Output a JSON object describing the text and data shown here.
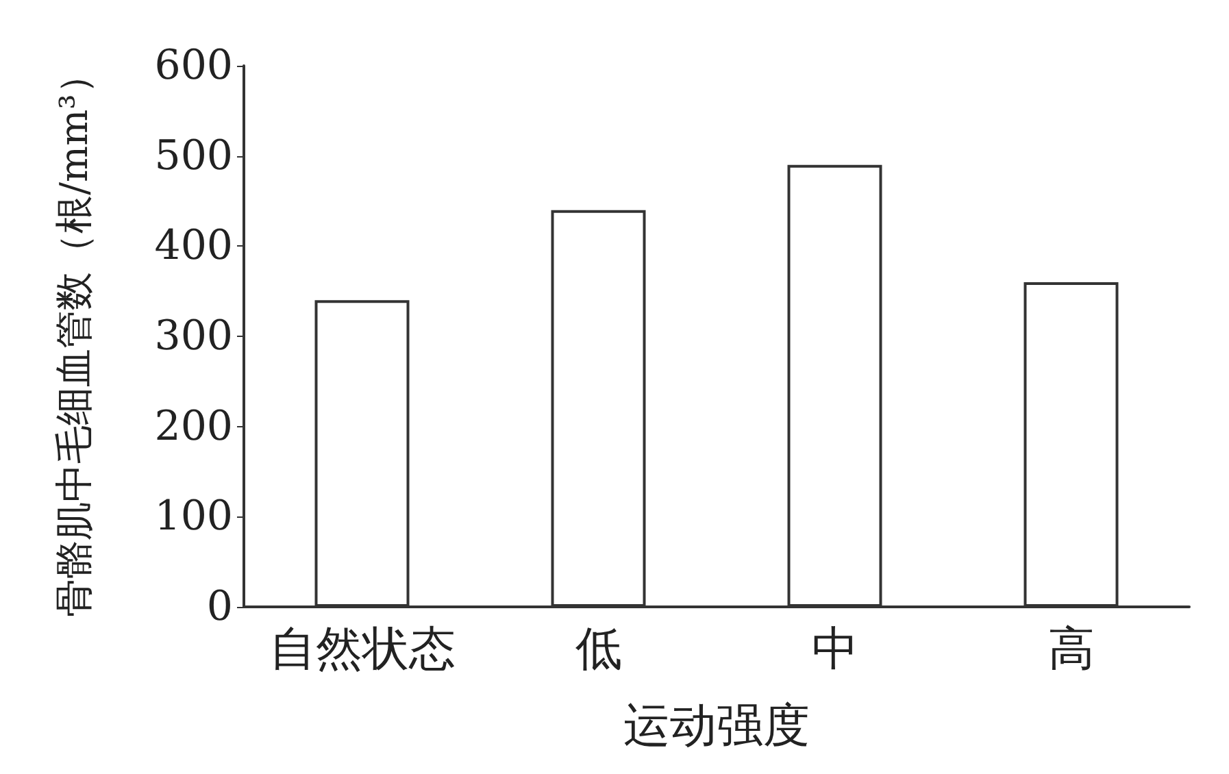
{
  "chart_data": {
    "type": "bar",
    "xlabel": "运动强度",
    "ylabel": "骨骼肌中毛细血管数（根/mm³）",
    "categories": [
      "自然状态",
      "低",
      "中",
      "高"
    ],
    "values": [
      340,
      440,
      490,
      360
    ],
    "color": "#ffffff",
    "ylim": [
      0,
      600
    ],
    "yticks": [
      0,
      100,
      200,
      300,
      400,
      500,
      600
    ],
    "grid": false
  }
}
